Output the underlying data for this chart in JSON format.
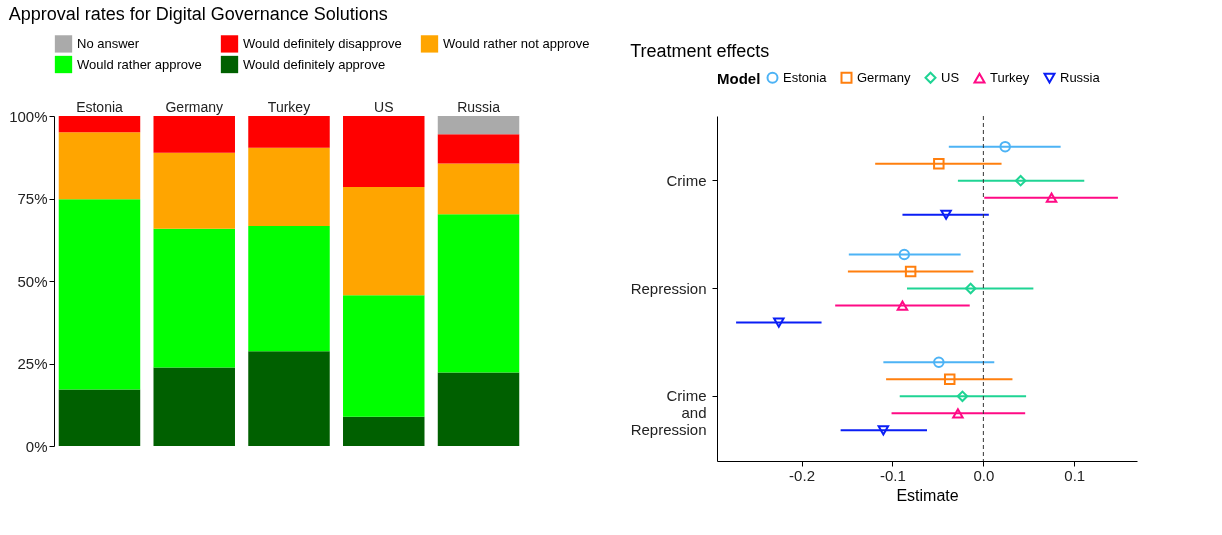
{
  "chart_data": [
    {
      "type": "bar",
      "title": "Approval rates for Digital Governance Solutions",
      "categories": [
        "Estonia",
        "Germany",
        "Turkey",
        "US",
        "Russia"
      ],
      "stacked": true,
      "ylim": [
        0,
        100
      ],
      "yticks": [
        {
          "value": 0,
          "label": "0%"
        },
        {
          "value": 25,
          "label": "25%"
        },
        {
          "value": 50,
          "label": "50%"
        },
        {
          "value": 75,
          "label": "75%"
        },
        {
          "value": 100,
          "label": "100%"
        }
      ],
      "grid": false,
      "legend": "top",
      "series": [
        {
          "name": "Would definitely approve",
          "color": "#006000",
          "values": [
            17.1,
            23.8,
            28.7,
            8.9,
            22.3
          ]
        },
        {
          "name": "Would rather approve",
          "color": "#00ff00",
          "values": [
            57.7,
            42.0,
            38.0,
            36.8,
            47.9
          ]
        },
        {
          "name": "Would rather not approve",
          "color": "#ffa500",
          "values": [
            20.3,
            23.1,
            23.7,
            32.8,
            15.4
          ]
        },
        {
          "name": "Would definitely disapprove",
          "color": "#ff0000",
          "values": [
            4.9,
            11.1,
            9.6,
            21.5,
            8.9
          ]
        },
        {
          "name": "No answer",
          "color": "#aaaaaa",
          "values": [
            0,
            0,
            0,
            0,
            5.5
          ]
        }
      ]
    },
    {
      "type": "scatter",
      "title": "Treatment effects",
      "orientation": "horizontal",
      "categories": [
        "Crime",
        "Repression",
        "Crime and Repression"
      ],
      "xlabel": "Estimate",
      "legend_title": "Model",
      "legend": "top",
      "grid": false,
      "xlim": [
        -0.293,
        0.169
      ],
      "xticks": [
        -0.2,
        -0.1,
        {
          "value": 0,
          "label": "0.0"
        },
        0.1
      ],
      "ref_lines": [
        {
          "axis": "x",
          "value": 0,
          "line_style": "dashed",
          "color": "#333333"
        }
      ],
      "series": [
        {
          "name": "Estonia",
          "color": "#4db3f5",
          "marker": "circle",
          "values": [
            0.024,
            -0.087,
            -0.049
          ],
          "errors": [
            [
              -0.038,
              0.085
            ],
            [
              -0.148,
              -0.025
            ],
            [
              -0.11,
              0.012
            ]
          ]
        },
        {
          "name": "Germany",
          "color": "#ff7f0e",
          "marker": "square",
          "values": [
            -0.049,
            -0.08,
            -0.037
          ],
          "errors": [
            [
              -0.119,
              0.02
            ],
            [
              -0.149,
              -0.011
            ],
            [
              -0.107,
              0.032
            ]
          ]
        },
        {
          "name": "US",
          "color": "#1fd494",
          "marker": "diamond",
          "values": [
            0.041,
            -0.014,
            -0.023
          ],
          "errors": [
            [
              -0.028,
              0.111
            ],
            [
              -0.084,
              0.055
            ],
            [
              -0.092,
              0.047
            ]
          ]
        },
        {
          "name": "Turkey",
          "color": "#ff0a85",
          "marker": "triangle",
          "values": [
            0.075,
            -0.089,
            -0.028
          ],
          "errors": [
            [
              0.001,
              0.148
            ],
            [
              -0.163,
              -0.015
            ],
            [
              -0.101,
              0.046
            ]
          ]
        },
        {
          "name": "Russia",
          "color": "#0a1ef5",
          "marker": "triangle-down",
          "values": [
            -0.041,
            -0.225,
            -0.11
          ],
          "errors": [
            [
              -0.089,
              0.006
            ],
            [
              -0.272,
              -0.178
            ],
            [
              -0.157,
              -0.062
            ]
          ]
        }
      ]
    }
  ]
}
